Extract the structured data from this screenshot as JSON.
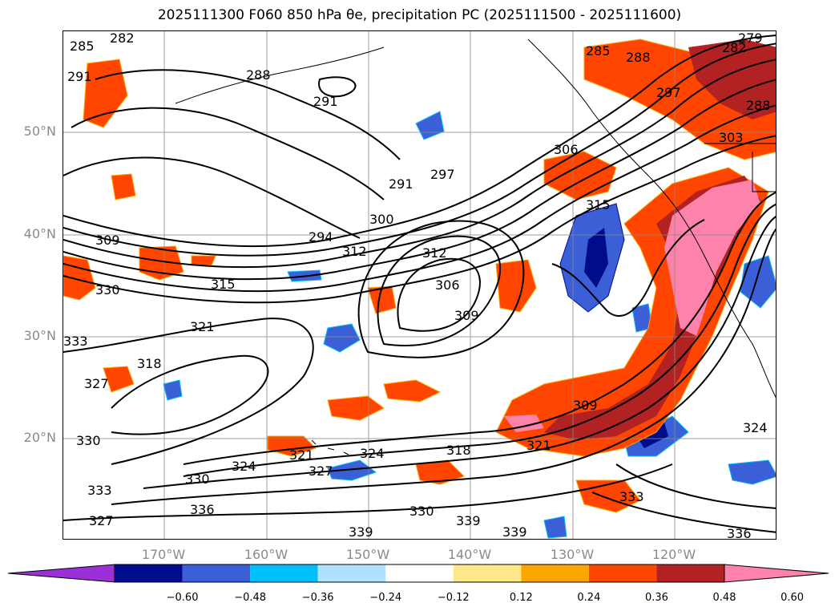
{
  "title": "2025111300 F060 850 hPa θe, precipitation PC (2025111500 - 2025111600)",
  "lat_labels": [
    "50°N",
    "40°N",
    "30°N",
    "20°N"
  ],
  "lon_labels": [
    "170°W",
    "160°W",
    "150°W",
    "140°W",
    "130°W",
    "120°W"
  ],
  "colorbar": {
    "ticks": [
      "−0.60",
      "−0.48",
      "−0.36",
      "−0.24",
      "−0.12",
      "0.12",
      "0.24",
      "0.36",
      "0.48",
      "0.60"
    ],
    "colors": [
      "#9b30d9",
      "#000c8c",
      "#3b5fd6",
      "#00bfff",
      "#b0e2ff",
      "#ffffff",
      "#ffe88a",
      "#ffa500",
      "#ff4500",
      "#b22222",
      "#ff82ab"
    ],
    "extend": "both"
  },
  "contour_labels": [
    "282",
    "285",
    "291",
    "288",
    "291",
    "285",
    "288",
    "279",
    "282",
    "288",
    "297",
    "306",
    "303",
    "291",
    "297",
    "315",
    "300",
    "294",
    "312",
    "312",
    "309",
    "306",
    "309",
    "315",
    "330",
    "321",
    "318",
    "327",
    "330",
    "324",
    "330",
    "321",
    "327",
    "324",
    "318",
    "309",
    "321",
    "333",
    "336",
    "327",
    "330",
    "339",
    "339",
    "339",
    "333",
    "336",
    "324",
    "333"
  ],
  "colors": {
    "contour": "#000000",
    "grid": "#888888",
    "coast": "#000000",
    "label_gray": "#8a8a8a"
  }
}
